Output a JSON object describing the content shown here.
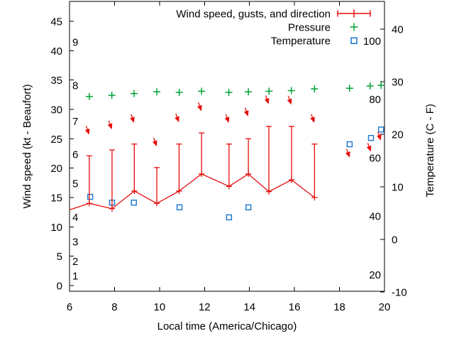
{
  "legend": {
    "items": [
      {
        "label": "Wind speed, gusts, and direction",
        "series": "wind"
      },
      {
        "label": "Pressure",
        "series": "pressure"
      },
      {
        "label": "Temperature",
        "series": "temperature"
      }
    ]
  },
  "colors": {
    "wind": "#e60c0c",
    "pressure": "#00a332",
    "temperature": "#1875d1",
    "axis": "#000000",
    "background": "#ffffff"
  },
  "chart_data": {
    "type": "line",
    "title": "",
    "xlabel": "Local time (America/Chicago)",
    "ylabel_left": "Wind speed (kt - Beaufort)",
    "ylabel_right": "Temperature (C - F)",
    "x_range": [
      6,
      20
    ],
    "x_ticks": [
      6,
      8,
      10,
      12,
      14,
      16,
      18,
      20
    ],
    "y_left_range_kt": [
      0,
      45
    ],
    "y_left_ticks_kt": [
      0,
      5,
      10,
      15,
      20,
      25,
      30,
      35,
      40,
      45
    ],
    "beaufort_scale_labels": [
      {
        "label": "1",
        "kt": 1.7
      },
      {
        "label": "2",
        "kt": 4.2
      },
      {
        "label": "3",
        "kt": 7.5
      },
      {
        "label": "4",
        "kt": 11.7
      },
      {
        "label": "5",
        "kt": 17.4
      },
      {
        "label": "6",
        "kt": 22.4
      },
      {
        "label": "7",
        "kt": 28.0
      },
      {
        "label": "8",
        "kt": 34.1
      },
      {
        "label": "9",
        "kt": 41.5
      }
    ],
    "y_right_range_c": [
      -10,
      40
    ],
    "y_right_ticks_c": [
      -10,
      0,
      10,
      20,
      30,
      40
    ],
    "fahrenheit_labels": [
      20,
      40,
      60,
      80,
      100
    ],
    "grid": false,
    "legend_position": "top-right-inside",
    "wind_points": [
      {
        "t": 6.0,
        "speed_kt": 12.9,
        "marker": false
      },
      {
        "t": 6.88,
        "speed_kt": 14.0,
        "gust_kt": 22.1,
        "arrow_tip_kt": 25.6
      },
      {
        "t": 7.89,
        "speed_kt": 13.1,
        "gust_kt": 23.1,
        "arrow_tip_kt": 26.5
      },
      {
        "t": 8.88,
        "speed_kt": 16.1,
        "gust_kt": 24.1,
        "arrow_tip_kt": 27.6
      },
      {
        "t": 9.88,
        "speed_kt": 14.0,
        "gust_kt": 20.1,
        "arrow_tip_kt": 23.6
      },
      {
        "t": 10.87,
        "speed_kt": 16.1,
        "gust_kt": 24.1,
        "arrow_tip_kt": 27.7
      },
      {
        "t": 11.87,
        "speed_kt": 19.0,
        "gust_kt": 26.0,
        "arrow_tip_kt": 29.6
      },
      {
        "t": 13.09,
        "speed_kt": 16.9,
        "gust_kt": 24.1,
        "arrow_tip_kt": 27.6
      },
      {
        "t": 13.95,
        "speed_kt": 19.0,
        "gust_kt": 25.0,
        "arrow_tip_kt": 28.7
      },
      {
        "t": 14.86,
        "speed_kt": 16.0,
        "gust_kt": 27.1,
        "arrow_tip_kt": 30.8
      },
      {
        "t": 15.87,
        "speed_kt": 18.0,
        "gust_kt": 27.1,
        "arrow_tip_kt": 30.7
      },
      {
        "t": 16.89,
        "speed_kt": 15.0,
        "gust_kt": 24.1,
        "arrow_tip_kt": 27.6
      }
    ],
    "wind_arrows_only": [
      {
        "t": 18.46,
        "arrow_tip_kt": 21.7
      },
      {
        "t": 19.4,
        "arrow_tip_kt": 22.7
      },
      {
        "t": 19.85,
        "arrow_tip_kt": 24.6
      }
    ],
    "pressure_points": [
      {
        "t": 6.88,
        "y_kt": 32.2
      },
      {
        "t": 7.88,
        "y_kt": 32.4
      },
      {
        "t": 8.87,
        "y_kt": 32.7
      },
      {
        "t": 9.88,
        "y_kt": 33.0
      },
      {
        "t": 10.88,
        "y_kt": 32.9
      },
      {
        "t": 11.87,
        "y_kt": 33.1
      },
      {
        "t": 13.08,
        "y_kt": 32.9
      },
      {
        "t": 13.95,
        "y_kt": 33.0
      },
      {
        "t": 14.87,
        "y_kt": 33.1
      },
      {
        "t": 15.86,
        "y_kt": 33.2
      },
      {
        "t": 16.89,
        "y_kt": 33.5
      },
      {
        "t": 18.45,
        "y_kt": 33.6
      },
      {
        "t": 19.36,
        "y_kt": 34.0
      },
      {
        "t": 19.85,
        "y_kt": 34.1
      }
    ],
    "temperature_points": [
      {
        "t": 6.92,
        "c": 8.1
      },
      {
        "t": 7.89,
        "c": 7.0
      },
      {
        "t": 8.86,
        "c": 7.0
      },
      {
        "t": 10.89,
        "c": 6.1
      },
      {
        "t": 13.09,
        "c": 4.2
      },
      {
        "t": 13.95,
        "c": 6.1
      },
      {
        "t": 18.45,
        "c": 18.1
      },
      {
        "t": 19.4,
        "c": 19.3
      },
      {
        "t": 19.85,
        "c": 20.9
      }
    ]
  }
}
